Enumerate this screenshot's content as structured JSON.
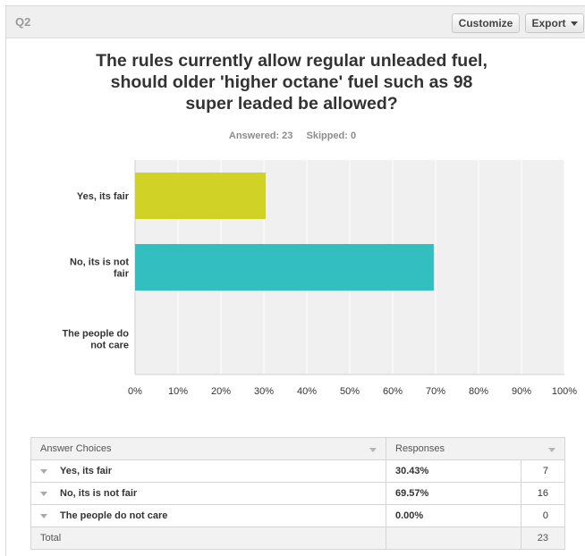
{
  "header": {
    "question_label": "Q2",
    "customize_label": "Customize",
    "export_label": "Export"
  },
  "title": "The rules currently allow regular unleaded fuel, should older 'higher octane' fuel such as 98 super leaded be allowed?",
  "stats": {
    "answered": "Answered: 23",
    "skipped": "Skipped: 0"
  },
  "chart_data": {
    "type": "bar",
    "orientation": "horizontal",
    "categories": [
      "Yes, its fair",
      "No, its is not fair",
      "The people do not care"
    ],
    "values": [
      30.43,
      69.57,
      0.0
    ],
    "colors": [
      "#d0d325",
      "#33bfc0",
      "#8e8e8e"
    ],
    "xlim": [
      0,
      100
    ],
    "x_ticks": [
      "0%",
      "10%",
      "20%",
      "30%",
      "40%",
      "50%",
      "60%",
      "70%",
      "80%",
      "90%",
      "100%"
    ],
    "grid": true
  },
  "table": {
    "headers": [
      "Answer Choices",
      "Responses"
    ],
    "rows": [
      {
        "choice": "Yes, its fair",
        "percent": "30.43%",
        "count": "7"
      },
      {
        "choice": "No, its is not fair",
        "percent": "69.57%",
        "count": "16"
      },
      {
        "choice": "The people do not care",
        "percent": "0.00%",
        "count": "0"
      }
    ],
    "total_label": "Total",
    "total_count": "23"
  }
}
